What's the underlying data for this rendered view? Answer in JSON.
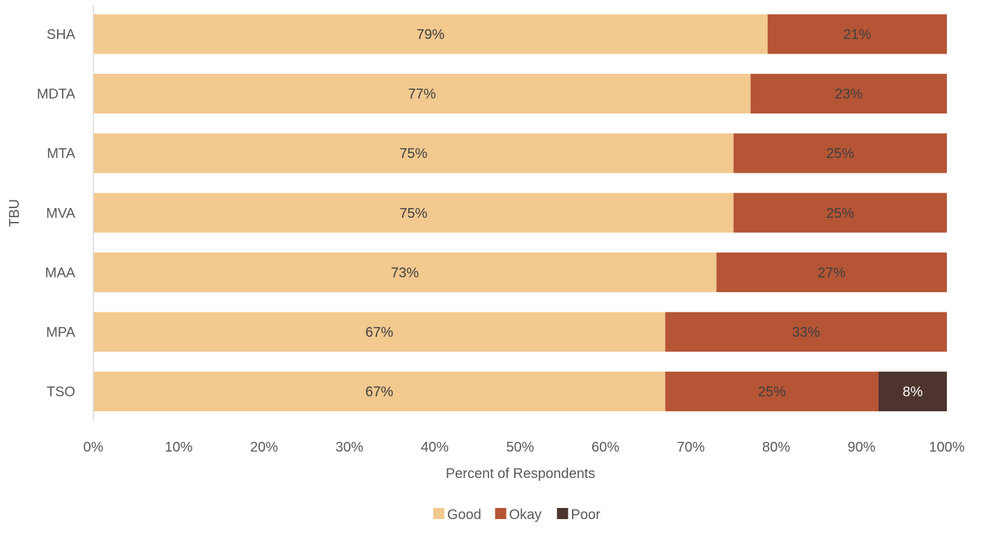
{
  "chart_data": {
    "type": "bar",
    "orientation": "horizontal",
    "stacked": "percent",
    "title": "",
    "xlabel": "Percent of Respondents",
    "ylabel": "TBU",
    "xlim": [
      0,
      100
    ],
    "x_ticks": [
      "0%",
      "10%",
      "20%",
      "30%",
      "40%",
      "50%",
      "60%",
      "70%",
      "80%",
      "90%",
      "100%"
    ],
    "grid": false,
    "legend_position": "bottom",
    "categories": [
      "SHA",
      "MDTA",
      "MTA",
      "MVA",
      "MAA",
      "MPA",
      "TSO"
    ],
    "series": [
      {
        "name": "Good",
        "color": "#F2C98F",
        "values": [
          79,
          77,
          75,
          75,
          73,
          67,
          67
        ],
        "labels": [
          "79%",
          "77%",
          "75%",
          "75%",
          "73%",
          "67%",
          "67%"
        ],
        "label_color": "#3f3f3f"
      },
      {
        "name": "Okay",
        "color": "#B55535",
        "values": [
          21,
          23,
          25,
          25,
          27,
          33,
          25
        ],
        "labels": [
          "21%",
          "23%",
          "25%",
          "25%",
          "27%",
          "33%",
          "25%"
        ],
        "label_color": "#3f3f3f"
      },
      {
        "name": "Poor",
        "color": "#4E342E",
        "values": [
          0,
          0,
          0,
          0,
          0,
          0,
          8
        ],
        "labels": [
          "",
          "",
          "",
          "",
          "",
          "",
          "8%"
        ],
        "label_color": "#ffffff"
      }
    ]
  }
}
